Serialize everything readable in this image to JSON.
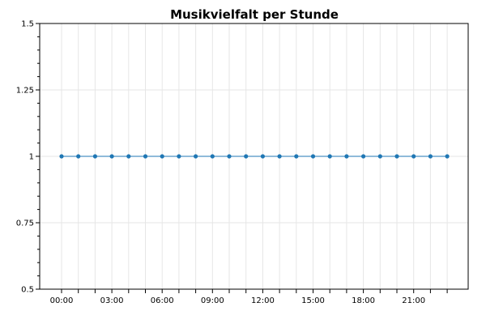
{
  "chart_data": {
    "type": "line",
    "title": "Musikvielfalt per Stunde",
    "xlabel": "",
    "ylabel": "",
    "x": [
      "00:00",
      "01:00",
      "02:00",
      "03:00",
      "04:00",
      "05:00",
      "06:00",
      "07:00",
      "08:00",
      "09:00",
      "10:00",
      "11:00",
      "12:00",
      "13:00",
      "14:00",
      "15:00",
      "16:00",
      "17:00",
      "18:00",
      "19:00",
      "20:00",
      "21:00",
      "22:00",
      "23:00"
    ],
    "x_tick_labels": [
      "00:00",
      "03:00",
      "06:00",
      "09:00",
      "12:00",
      "15:00",
      "18:00",
      "21:00"
    ],
    "series": [
      {
        "values": [
          1,
          1,
          1,
          1,
          1,
          1,
          1,
          1,
          1,
          1,
          1,
          1,
          1,
          1,
          1,
          1,
          1,
          1,
          1,
          1,
          1,
          1,
          1,
          1
        ],
        "color": "#1f77b4"
      }
    ],
    "ylim": [
      0.5,
      1.5
    ],
    "y_ticks": [
      0.5,
      0.75,
      1,
      1.25,
      1.5
    ],
    "y_tick_labels": [
      "0.5",
      "0.75",
      "1",
      "1.25",
      "1.5"
    ],
    "grid": true,
    "legend": "none"
  }
}
